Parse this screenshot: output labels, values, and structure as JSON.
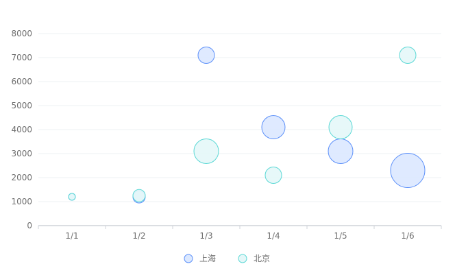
{
  "chart_data": {
    "type": "scatter",
    "title": "",
    "xlabel": "",
    "ylabel": "",
    "x_categories": [
      "1/1",
      "1/2",
      "1/3",
      "1/4",
      "1/5",
      "1/6"
    ],
    "y_ticks": [
      "0",
      "1000",
      "2000",
      "3000",
      "4000",
      "5000",
      "6000",
      "7000",
      "8000"
    ],
    "ylim": [
      0,
      8000
    ],
    "grid": true,
    "legend_position": "bottom-center",
    "series": [
      {
        "name": "上海",
        "color": "#5b8ff9",
        "fill": "#dbe8ff",
        "points": [
          {
            "x": "1/1",
            "y": 1200,
            "size": 10
          },
          {
            "x": "1/2",
            "y": 1200,
            "size": 18
          },
          {
            "x": "1/3",
            "y": 7100,
            "size": 24
          },
          {
            "x": "1/4",
            "y": 4100,
            "size": 34
          },
          {
            "x": "1/5",
            "y": 3100,
            "size": 36
          },
          {
            "x": "1/6",
            "y": 2300,
            "size": 50
          }
        ]
      },
      {
        "name": "北京",
        "color": "#5ad8d5",
        "fill": "#e4f7f8",
        "points": [
          {
            "x": "1/1",
            "y": 1200,
            "size": 10
          },
          {
            "x": "1/2",
            "y": 1250,
            "size": 18
          },
          {
            "x": "1/3",
            "y": 3100,
            "size": 36
          },
          {
            "x": "1/4",
            "y": 2100,
            "size": 24
          },
          {
            "x": "1/5",
            "y": 4100,
            "size": 34
          },
          {
            "x": "1/6",
            "y": 7100,
            "size": 24
          }
        ]
      }
    ]
  }
}
